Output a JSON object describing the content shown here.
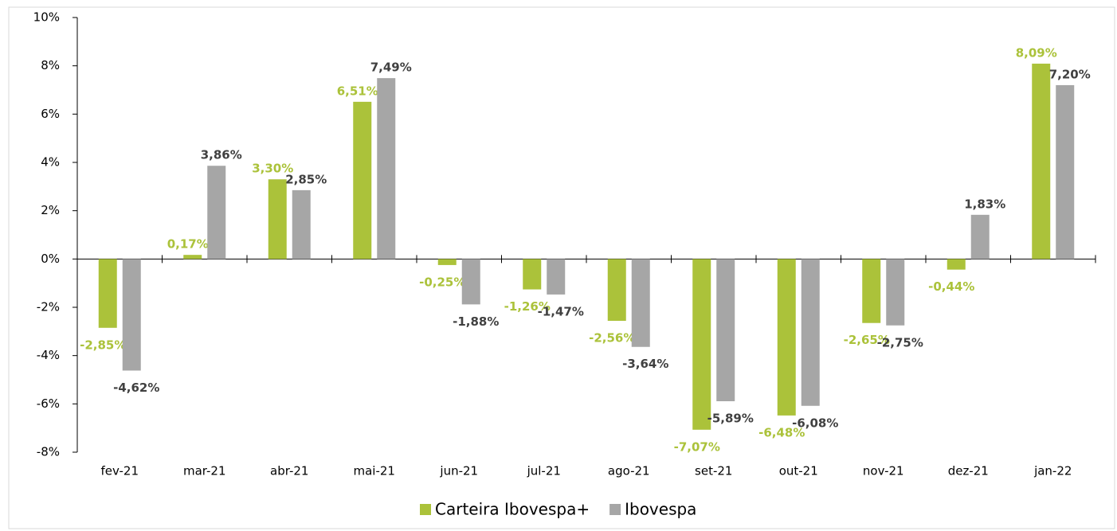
{
  "chart_data": {
    "type": "bar",
    "categories": [
      "fev-21",
      "mar-21",
      "abr-21",
      "mai-21",
      "jun-21",
      "jul-21",
      "ago-21",
      "set-21",
      "out-21",
      "nov-21",
      "dez-21",
      "jan-22"
    ],
    "series": [
      {
        "name": "Carteira Ibovespa+",
        "color": "#abc23a",
        "label_color": "#abc23a",
        "values": [
          -2.85,
          0.17,
          3.3,
          6.51,
          -0.25,
          -1.26,
          -2.56,
          -7.07,
          -6.48,
          -2.65,
          -0.44,
          8.09
        ],
        "value_labels": [
          "-2,85%",
          "0,17%",
          "3,30%",
          "6,51%",
          "-0,25%",
          "-1,26%",
          "-2,56%",
          "-7,07%",
          "-6,48%",
          "-2,65%",
          "-0,44%",
          "8,09%"
        ]
      },
      {
        "name": "Ibovespa",
        "color": "#a6a6a6",
        "label_color": "#404040",
        "values": [
          -4.62,
          3.86,
          2.85,
          7.49,
          -1.88,
          -1.47,
          -3.64,
          -5.89,
          -6.08,
          -2.75,
          1.83,
          7.2
        ],
        "value_labels": [
          "-4,62%",
          "3,86%",
          "2,85%",
          "7,49%",
          "-1,88%",
          "-1,47%",
          "-3,64%",
          "-5,89%",
          "-6,08%",
          "-2,75%",
          "1,83%",
          "7,20%"
        ]
      }
    ],
    "ylim": [
      -8,
      10
    ],
    "yticks": [
      {
        "value": -8,
        "label": "-8%"
      },
      {
        "value": -6,
        "label": "-6%"
      },
      {
        "value": -4,
        "label": "-4%"
      },
      {
        "value": -2,
        "label": "-2%"
      },
      {
        "value": 0,
        "label": "0%"
      },
      {
        "value": 2,
        "label": "2%"
      },
      {
        "value": 4,
        "label": "4%"
      },
      {
        "value": 6,
        "label": "6%"
      },
      {
        "value": 8,
        "label": "8%"
      },
      {
        "value": 10,
        "label": "10%"
      }
    ],
    "legend": "bottom"
  }
}
